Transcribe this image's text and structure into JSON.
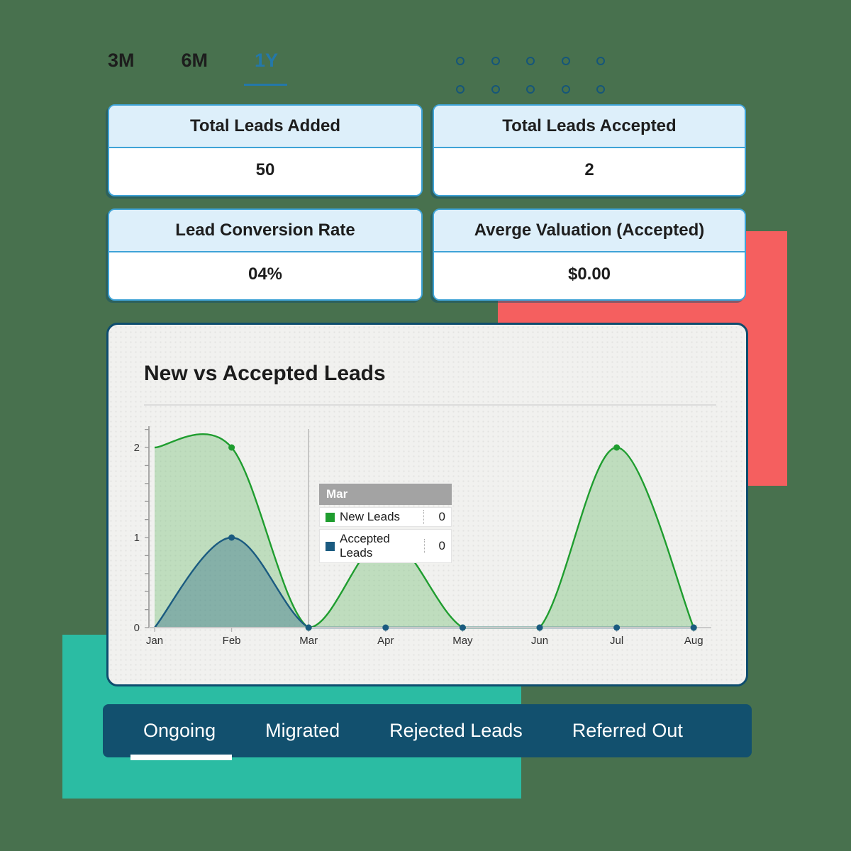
{
  "time_filters": {
    "items": [
      {
        "label": "3M",
        "active": false
      },
      {
        "label": "6M",
        "active": false
      },
      {
        "label": "1Y",
        "active": true
      }
    ]
  },
  "decor": {
    "dots": {
      "rows": 2,
      "cols": 5,
      "ring_color": "#15567a"
    },
    "red_rect_color": "#f55f5f",
    "teal_rect_color": "#2bbca3",
    "background_color": "#48714e"
  },
  "stat_cards": [
    {
      "title": "Total Leads Added",
      "value": "50"
    },
    {
      "title": "Total Leads Accepted",
      "value": "2"
    },
    {
      "title": "Lead Conversion Rate",
      "value": "04%"
    },
    {
      "title": "Averge Valuation (Accepted)",
      "value": "$0.00"
    }
  ],
  "chart_card": {
    "title": "New vs Accepted Leads"
  },
  "chart_data": {
    "type": "area",
    "x": [
      "Jan",
      "Feb",
      "Mar",
      "Apr",
      "May",
      "Jun",
      "Jul",
      "Aug"
    ],
    "series": [
      {
        "name": "New Leads",
        "color": "#1f9d2f",
        "fill": "rgba(110,190,110,0.38)",
        "values": [
          2,
          2,
          0,
          1,
          0,
          0,
          2,
          0
        ]
      },
      {
        "name": "Accepted Leads",
        "color": "#1b5b80",
        "fill": "rgba(27,91,128,0.35)",
        "values": [
          0,
          1,
          0,
          0,
          0,
          0,
          0,
          0
        ]
      }
    ],
    "ylim": [
      0,
      2.25
    ],
    "y_major_ticks": [
      0,
      1,
      2
    ],
    "y_minor_interval": 0.2,
    "grid": false,
    "hover_index": 2,
    "legend_position": "tooltip"
  },
  "tooltip": {
    "header": "Mar",
    "rows": [
      {
        "label": "New Leads",
        "value": "0"
      },
      {
        "label": "Accepted Leads",
        "value": "0"
      }
    ]
  },
  "bottom_tabs": {
    "items": [
      {
        "label": "Ongoing",
        "active": true
      },
      {
        "label": "Migrated",
        "active": false
      },
      {
        "label": "Rejected Leads",
        "active": false
      },
      {
        "label": "Referred Out",
        "active": false
      }
    ]
  }
}
